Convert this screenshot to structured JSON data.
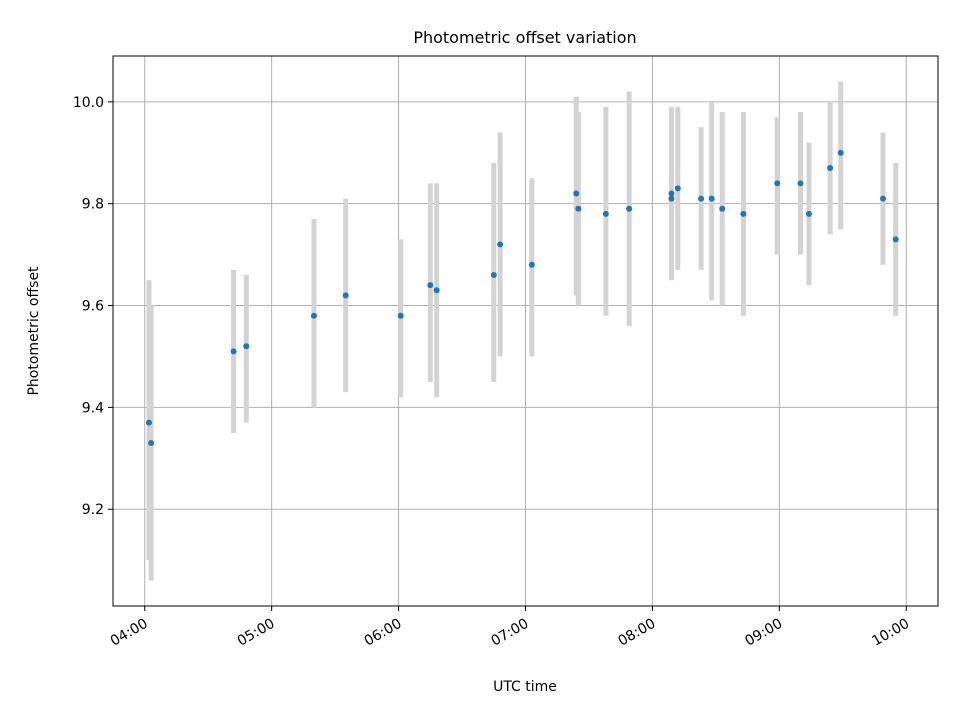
{
  "chart_data": {
    "type": "scatter",
    "title": "Photometric offset variation",
    "xlabel": "UTC time",
    "ylabel": "Photometric offset",
    "x_axis_kind": "time",
    "xlim": [
      "03:45",
      "10:15"
    ],
    "ylim": [
      9.01,
      10.09
    ],
    "x_ticks": [
      "04:00",
      "05:00",
      "06:00",
      "07:00",
      "08:00",
      "09:00",
      "10:00"
    ],
    "y_ticks": [
      9.2,
      9.4,
      9.6,
      9.8,
      10.0
    ],
    "grid": true,
    "legend": false,
    "colors": {
      "point": "#1f77b4",
      "errorbar": "#d3d3d3",
      "grid": "#b0b0b0"
    },
    "points": [
      {
        "x": "04:02",
        "y": 9.37,
        "ylo": 9.1,
        "yhi": 9.65
      },
      {
        "x": "04:03",
        "y": 9.33,
        "ylo": 9.06,
        "yhi": 9.6
      },
      {
        "x": "04:42",
        "y": 9.51,
        "ylo": 9.35,
        "yhi": 9.67
      },
      {
        "x": "04:48",
        "y": 9.52,
        "ylo": 9.37,
        "yhi": 9.66
      },
      {
        "x": "05:20",
        "y": 9.58,
        "ylo": 9.4,
        "yhi": 9.77
      },
      {
        "x": "05:35",
        "y": 9.62,
        "ylo": 9.43,
        "yhi": 9.81
      },
      {
        "x": "06:01",
        "y": 9.58,
        "ylo": 9.42,
        "yhi": 9.73
      },
      {
        "x": "06:15",
        "y": 9.64,
        "ylo": 9.45,
        "yhi": 9.84
      },
      {
        "x": "06:18",
        "y": 9.63,
        "ylo": 9.42,
        "yhi": 9.84
      },
      {
        "x": "06:45",
        "y": 9.66,
        "ylo": 9.45,
        "yhi": 9.88
      },
      {
        "x": "06:48",
        "y": 9.72,
        "ylo": 9.5,
        "yhi": 9.94
      },
      {
        "x": "07:03",
        "y": 9.68,
        "ylo": 9.5,
        "yhi": 9.85
      },
      {
        "x": "07:24",
        "y": 9.82,
        "ylo": 9.62,
        "yhi": 10.01
      },
      {
        "x": "07:25",
        "y": 9.79,
        "ylo": 9.6,
        "yhi": 9.98
      },
      {
        "x": "07:38",
        "y": 9.78,
        "ylo": 9.58,
        "yhi": 9.99
      },
      {
        "x": "07:49",
        "y": 9.79,
        "ylo": 9.56,
        "yhi": 10.02
      },
      {
        "x": "08:09",
        "y": 9.81,
        "ylo": 9.65,
        "yhi": 9.98
      },
      {
        "x": "08:09",
        "y": 9.82,
        "ylo": 9.65,
        "yhi": 9.99
      },
      {
        "x": "08:12",
        "y": 9.83,
        "ylo": 9.67,
        "yhi": 9.99
      },
      {
        "x": "08:23",
        "y": 9.81,
        "ylo": 9.67,
        "yhi": 9.95
      },
      {
        "x": "08:28",
        "y": 9.81,
        "ylo": 9.61,
        "yhi": 10.0
      },
      {
        "x": "08:33",
        "y": 9.79,
        "ylo": 9.6,
        "yhi": 9.98
      },
      {
        "x": "08:43",
        "y": 9.78,
        "ylo": 9.58,
        "yhi": 9.98
      },
      {
        "x": "08:59",
        "y": 9.84,
        "ylo": 9.7,
        "yhi": 9.97
      },
      {
        "x": "09:10",
        "y": 9.84,
        "ylo": 9.7,
        "yhi": 9.98
      },
      {
        "x": "09:14",
        "y": 9.78,
        "ylo": 9.64,
        "yhi": 9.92
      },
      {
        "x": "09:24",
        "y": 9.87,
        "ylo": 9.74,
        "yhi": 10.0
      },
      {
        "x": "09:29",
        "y": 9.9,
        "ylo": 9.75,
        "yhi": 10.04
      },
      {
        "x": "09:49",
        "y": 9.81,
        "ylo": 9.68,
        "yhi": 9.94
      },
      {
        "x": "09:55",
        "y": 9.73,
        "ylo": 9.58,
        "yhi": 9.88
      }
    ]
  }
}
